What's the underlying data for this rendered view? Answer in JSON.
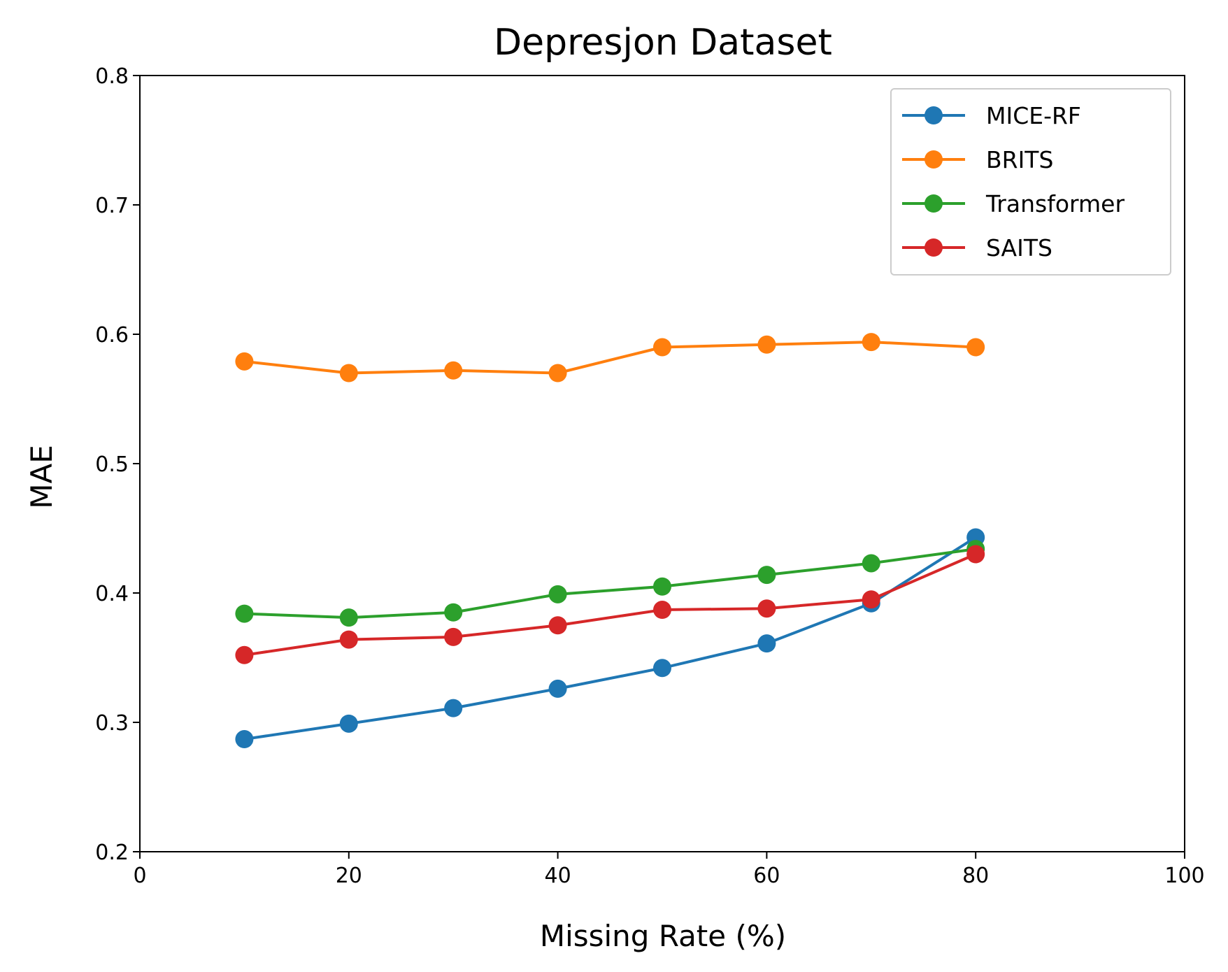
{
  "chart_data": {
    "type": "line",
    "title": "Depresjon Dataset",
    "xlabel": "Missing Rate (%)",
    "ylabel": "MAE",
    "xlim": [
      0,
      100
    ],
    "ylim": [
      0.2,
      0.8
    ],
    "xticks": [
      0,
      20,
      40,
      60,
      80,
      100
    ],
    "yticks": [
      0.2,
      0.3,
      0.4,
      0.5,
      0.6,
      0.7,
      0.8
    ],
    "xtick_labels": [
      "0",
      "20",
      "40",
      "60",
      "80",
      "100"
    ],
    "ytick_labels": [
      "0.2",
      "0.3",
      "0.4",
      "0.5",
      "0.6",
      "0.7",
      "0.8"
    ],
    "x": [
      10,
      20,
      30,
      40,
      50,
      60,
      70,
      80
    ],
    "grid": false,
    "legend_position": "top-right",
    "series": [
      {
        "name": "MICE-RF",
        "color": "#1f77b4",
        "values": [
          0.287,
          0.299,
          0.311,
          0.326,
          0.342,
          0.361,
          0.392,
          0.443
        ]
      },
      {
        "name": "BRITS",
        "color": "#ff7f0e",
        "values": [
          0.579,
          0.57,
          0.572,
          0.57,
          0.59,
          0.592,
          0.594,
          0.59
        ]
      },
      {
        "name": "Transformer",
        "color": "#2ca02c",
        "values": [
          0.384,
          0.381,
          0.385,
          0.399,
          0.405,
          0.414,
          0.423,
          0.434
        ]
      },
      {
        "name": "SAITS",
        "color": "#d62728",
        "values": [
          0.352,
          0.364,
          0.366,
          0.375,
          0.387,
          0.388,
          0.395,
          0.43
        ]
      }
    ]
  }
}
